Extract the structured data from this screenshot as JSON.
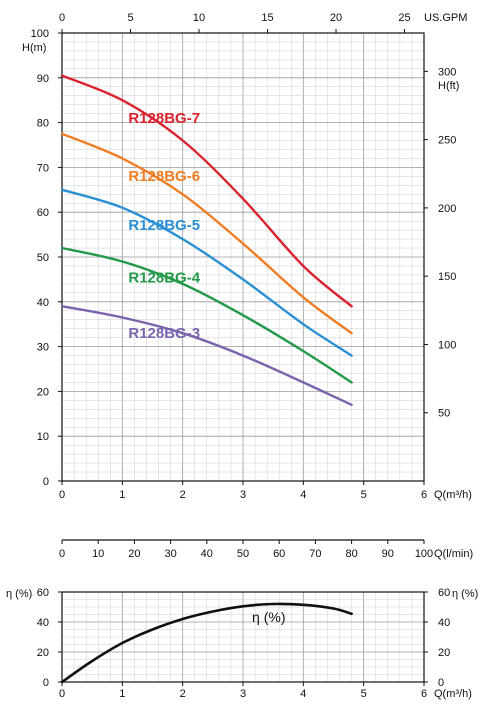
{
  "chart_data": [
    {
      "type": "line",
      "id": "head-curve",
      "xlabel": "Q(m³/h)",
      "ylabel": "H(m)",
      "top_axis_label": "US.GPM",
      "right_axis_label": "H(ft)",
      "xlim": [
        0,
        6
      ],
      "ylim": [
        0,
        100
      ],
      "top_lim": [
        0,
        26.42
      ],
      "right_lim": [
        0,
        328.08
      ],
      "x_ticks": [
        "0",
        "1",
        "2",
        "3",
        "4",
        "5",
        "6"
      ],
      "y_ticks": [
        "0",
        "10",
        "20",
        "30",
        "40",
        "50",
        "60",
        "70",
        "80",
        "90",
        "100"
      ],
      "top_ticks": [
        "0",
        "5",
        "10",
        "15",
        "20",
        "25"
      ],
      "right_ticks": [
        "50",
        "100",
        "150",
        "200",
        "250",
        "300"
      ],
      "grid": true,
      "series": [
        {
          "name": "R128BG-7",
          "color": "#d9232e",
          "x": [
            0,
            1,
            2,
            3,
            4,
            4.8
          ],
          "y": [
            90.5,
            85,
            76,
            63,
            48,
            39
          ]
        },
        {
          "name": "R128BG-6",
          "color": "#ef7d22",
          "x": [
            0,
            1,
            2,
            3,
            4,
            4.8
          ],
          "y": [
            77.5,
            72,
            64,
            53,
            41,
            33
          ]
        },
        {
          "name": "R128BG-5",
          "color": "#2a8fd3",
          "x": [
            0,
            1,
            2,
            3,
            4,
            4.8
          ],
          "y": [
            65,
            61,
            54,
            45,
            35,
            28
          ]
        },
        {
          "name": "R128BG-4",
          "color": "#24994a",
          "x": [
            0,
            1,
            2,
            3,
            4,
            4.8
          ],
          "y": [
            52,
            49,
            44,
            37,
            29,
            22
          ]
        },
        {
          "name": "R128BG-3",
          "color": "#7b63ad",
          "x": [
            0,
            1,
            2,
            3,
            4,
            4.8
          ],
          "y": [
            39,
            36.5,
            33,
            28,
            22,
            17
          ]
        }
      ]
    },
    {
      "type": "axis",
      "id": "flow-lmin-axis",
      "xlabel": "Q(l/min)",
      "xlim": [
        0,
        100
      ],
      "x_ticks": [
        "0",
        "10",
        "20",
        "30",
        "40",
        "50",
        "60",
        "70",
        "80",
        "90",
        "100"
      ]
    },
    {
      "type": "line",
      "id": "efficiency-curve",
      "xlabel": "Q(m³/h)",
      "ylabel": "η (%)",
      "right_axis_label": "η (%)",
      "xlim": [
        0,
        6
      ],
      "ylim": [
        0,
        60
      ],
      "x_ticks": [
        "0",
        "1",
        "2",
        "3",
        "4",
        "5",
        "6"
      ],
      "y_ticks": [
        "0",
        "20",
        "40",
        "60"
      ],
      "right_ticks": [
        "0",
        "20",
        "40",
        "60"
      ],
      "grid": true,
      "series": [
        {
          "name": "η (%)",
          "color": "#111111",
          "x": [
            0,
            0.5,
            1,
            1.5,
            2,
            2.5,
            3,
            3.5,
            4,
            4.5,
            4.8
          ],
          "y": [
            0,
            14,
            26,
            35,
            42,
            47,
            50.5,
            52,
            51.5,
            49,
            45.5
          ]
        }
      ]
    }
  ]
}
